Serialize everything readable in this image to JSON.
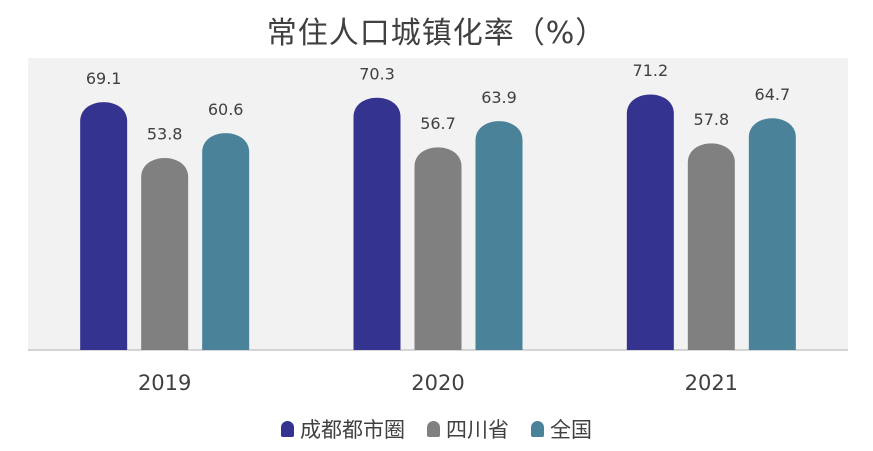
{
  "chart_data": {
    "type": "bar",
    "title": "常住人口城镇化率（%）",
    "categories": [
      "2019",
      "2020",
      "2021"
    ],
    "series": [
      {
        "name": "成都都市圈",
        "color": "#343490",
        "values": [
          69.1,
          70.3,
          71.2
        ]
      },
      {
        "name": "四川省",
        "color": "#808080",
        "values": [
          53.8,
          56.7,
          57.8
        ]
      },
      {
        "name": "全国",
        "color": "#4a829a",
        "values": [
          60.6,
          63.9,
          64.7
        ]
      }
    ],
    "ylim": [
      0,
      73
    ],
    "grid": false,
    "legend_position": "bottom",
    "plot_background": "#f2f2f2"
  }
}
